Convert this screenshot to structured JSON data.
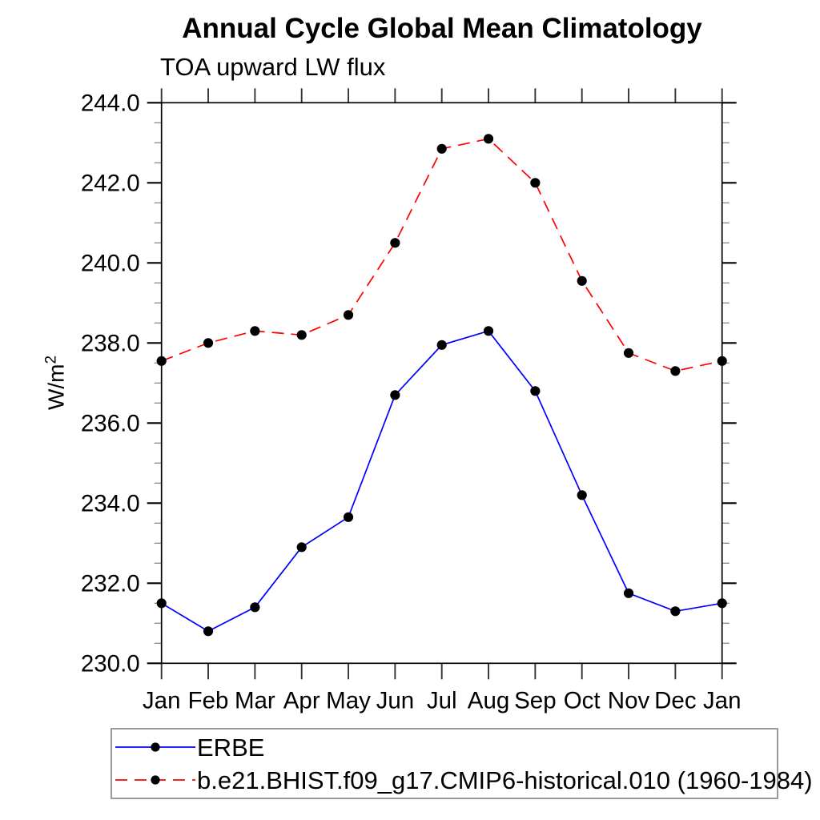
{
  "chart_data": {
    "type": "line",
    "title": "Annual Cycle Global Mean Climatology",
    "subtitle": "TOA upward LW flux",
    "ylabel_base": "W/m",
    "ylabel_exp": "2",
    "x_categories": [
      "Jan",
      "Feb",
      "Mar",
      "Apr",
      "May",
      "Jun",
      "Jul",
      "Aug",
      "Sep",
      "Oct",
      "Nov",
      "Dec",
      "Jan"
    ],
    "ylim": [
      230.0,
      244.0
    ],
    "ytick_major_step": 2.0,
    "ytick_minor_step": 0.5,
    "ytick_labels": [
      "230.0",
      "232.0",
      "234.0",
      "236.0",
      "238.0",
      "240.0",
      "242.0",
      "244.0"
    ],
    "grid": false,
    "legend_position": "bottom",
    "marker": "filled-circle",
    "marker_color": "#000000",
    "series": [
      {
        "name": "ERBE",
        "color": "#0000ff",
        "line_style": "solid",
        "values": [
          231.5,
          230.8,
          231.4,
          232.9,
          233.65,
          236.7,
          237.95,
          238.3,
          236.8,
          234.2,
          231.75,
          231.3,
          231.5
        ]
      },
      {
        "name": "b.e21.BHIST.f09_g17.CMIP6-historical.010 (1960-1984)",
        "color": "#ff0000",
        "line_style": "dashed",
        "values": [
          237.55,
          238.0,
          238.3,
          238.2,
          238.7,
          240.5,
          242.85,
          243.1,
          242.0,
          239.55,
          237.75,
          237.3,
          237.55
        ]
      }
    ]
  }
}
